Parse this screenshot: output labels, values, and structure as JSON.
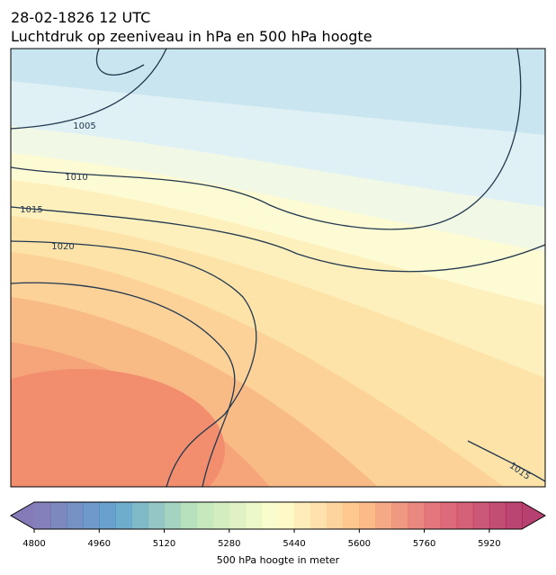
{
  "header": {
    "date": "28-02-1826 12 UTC",
    "title": "Luchtdruk op zeeniveau in hPa en 500 hPa hoogte"
  },
  "map": {
    "isobar_labels": [
      1005,
      1010,
      1015,
      1020,
      1015
    ]
  },
  "colorbar": {
    "label": "500 hPa hoogte in meter",
    "lim": [
      4800,
      6000
    ],
    "ticks": [
      4800,
      4960,
      5120,
      5280,
      5440,
      5600,
      5760,
      5920
    ]
  }
}
